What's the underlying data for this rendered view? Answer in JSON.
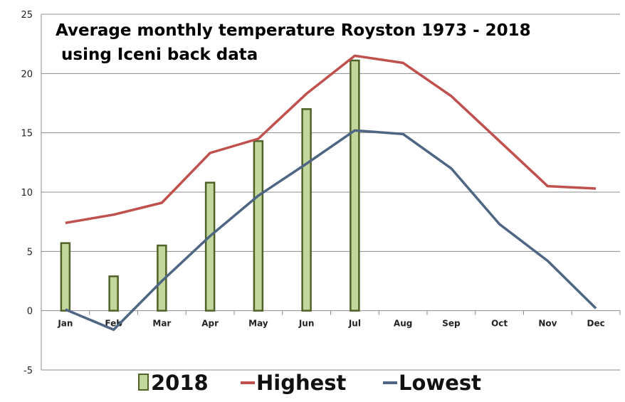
{
  "chart_data": {
    "type": "bar",
    "title_line1": "Average monthly temperature Royston 1973 - 2018",
    "title_line2": " using Iceni back data",
    "categories": [
      "Jan",
      "Feb",
      "Mar",
      "Apr",
      "May",
      "Jun",
      "Jul",
      "Aug",
      "Sep",
      "Oct",
      "Nov",
      "Dec"
    ],
    "ylim": [
      -5,
      25
    ],
    "yticks": [
      -5,
      0,
      5,
      10,
      15,
      20,
      25
    ],
    "grid": true,
    "legend_position": "bottom",
    "series": [
      {
        "name": "2018",
        "type": "bar",
        "color": "#c3d69b",
        "stroke": "#4f6228",
        "values": [
          5.7,
          2.9,
          5.5,
          10.8,
          14.3,
          17.0,
          21.1,
          null,
          null,
          null,
          null,
          null
        ]
      },
      {
        "name": "Highest",
        "type": "line",
        "color": "#c0504d",
        "values": [
          7.4,
          8.1,
          9.1,
          13.3,
          14.5,
          18.3,
          21.5,
          20.9,
          18.1,
          14.3,
          10.5,
          10.3
        ]
      },
      {
        "name": "Lowest",
        "type": "line",
        "color": "#4f6584",
        "values": [
          0.1,
          -1.6,
          2.5,
          6.3,
          9.7,
          12.4,
          15.2,
          14.9,
          12.0,
          7.3,
          4.2,
          0.2
        ]
      }
    ]
  }
}
